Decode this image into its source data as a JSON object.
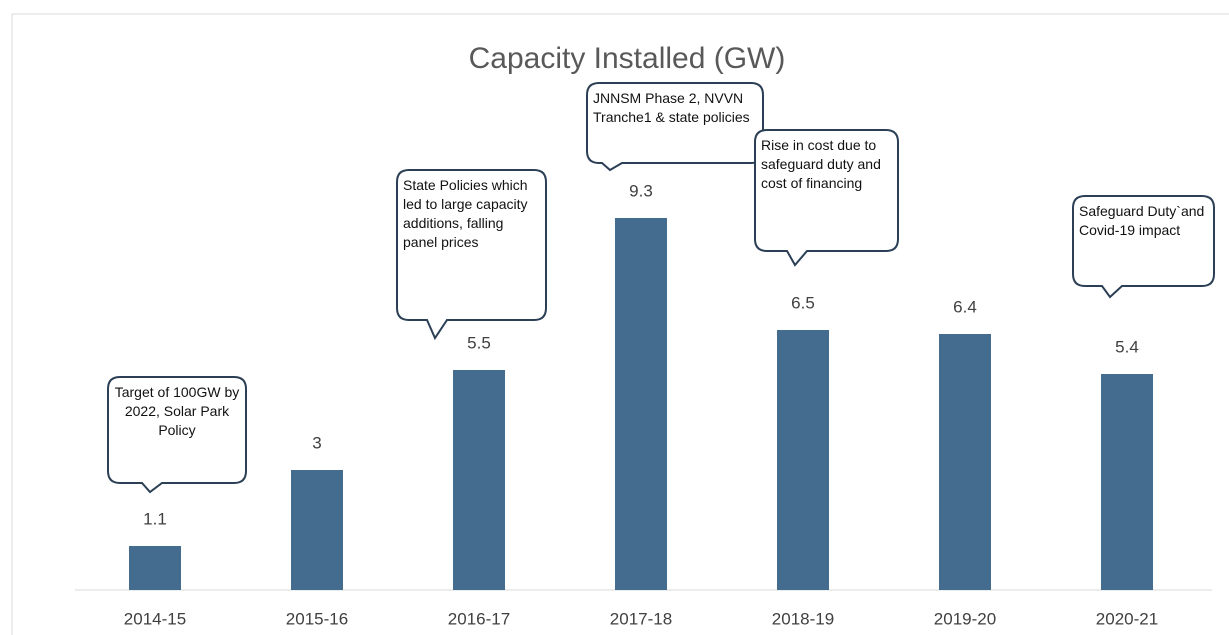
{
  "chart_data": {
    "type": "bar",
    "title": "Capacity Installed (GW)",
    "categories": [
      "2014-15",
      "2015-16",
      "2016-17",
      "2017-18",
      "2018-19",
      "2019-20",
      "2020-21"
    ],
    "values": [
      1.1,
      3,
      5.5,
      9.3,
      6.5,
      6.4,
      5.4
    ],
    "color": "#436c8f",
    "ylim": [
      0,
      10
    ],
    "annotations": [
      "Target of 100GW by 2022, Solar Park Policy",
      "State Policies which led to large capacity additions, falling panel prices",
      "JNNSM Phase 2, NVVN Tranche1 & state policies",
      "Rise in cost due to safeguard duty and cost of financing",
      "Safeguard Duty`and Covid-19 impact"
    ]
  }
}
